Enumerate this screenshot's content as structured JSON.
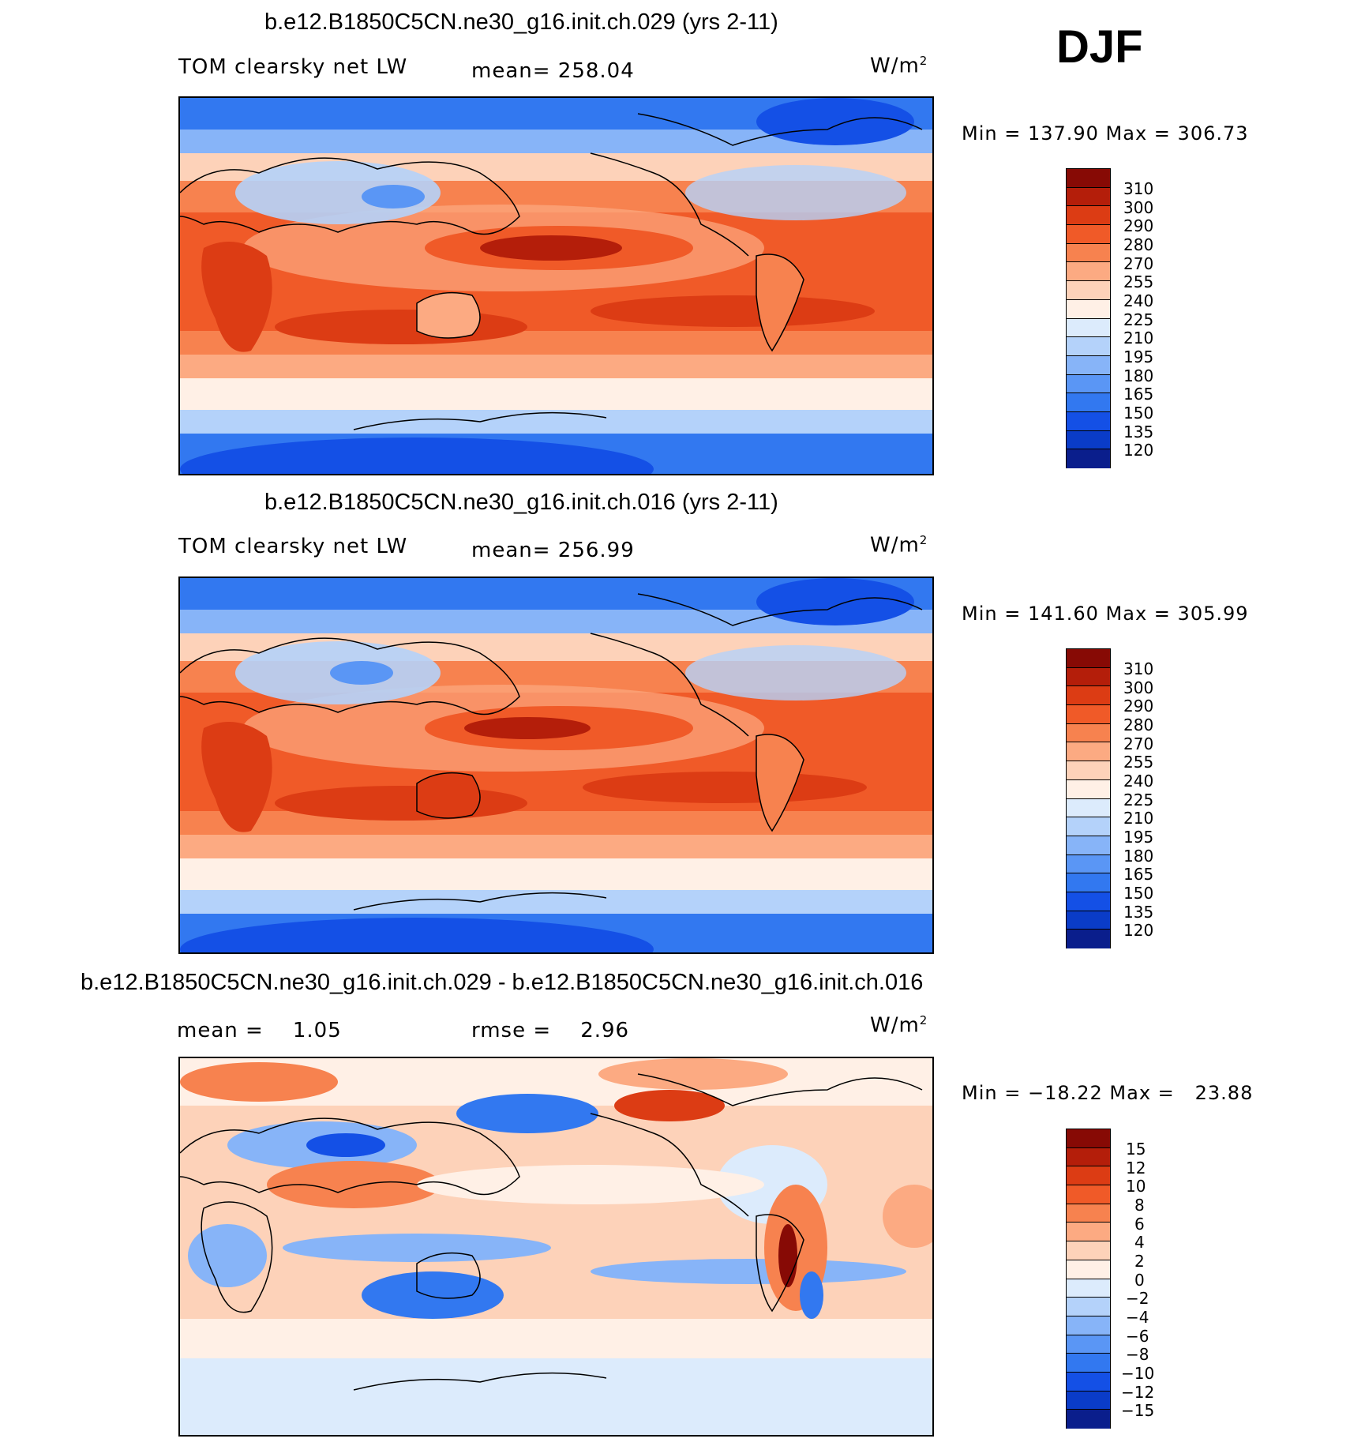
{
  "corner_label": "DJF",
  "colors": {
    "abs_scale": [
      "#0a1e8c",
      "#0a28a0",
      "#0a3cc8",
      "#1450e6",
      "#3278f0",
      "#5a96f5",
      "#87b4f8",
      "#b4d2fa",
      "#dcebfc",
      "#fff0e6",
      "#fdd2b9",
      "#fcaa82",
      "#f7824f",
      "#f05a28",
      "#dc3c14",
      "#b41e0a",
      "#870a05"
    ],
    "diff_scale": [
      "#0a1e8c",
      "#0a28a0",
      "#0a3cc8",
      "#1450e6",
      "#3278f0",
      "#5a96f5",
      "#87b4f8",
      "#b4d2fa",
      "#dcebfc",
      "#fff0e6",
      "#fdd2b9",
      "#fcaa82",
      "#f7824f",
      "#f05a28",
      "#dc3c14",
      "#b41e0a",
      "#870a05"
    ]
  },
  "panels": [
    {
      "title": "b.e12.B1850C5CN.ne30_g16.init.ch.029 (yrs 2-11)",
      "left_label": "TOM clearsky net LW",
      "center_label": "mean= 258.04",
      "units_base": "W/m",
      "units_exp": "2",
      "minmax": "Min = 137.90 Max = 306.73",
      "ticks": [
        "310",
        "300",
        "290",
        "280",
        "270",
        "255",
        "240",
        "225",
        "210",
        "195",
        "180",
        "165",
        "150",
        "135",
        "120"
      ]
    },
    {
      "title": "b.e12.B1850C5CN.ne30_g16.init.ch.016 (yrs 2-11)",
      "left_label": "TOM clearsky net LW",
      "center_label": "mean= 256.99",
      "units_base": "W/m",
      "units_exp": "2",
      "minmax": "Min = 141.60 Max = 305.99",
      "ticks": [
        "310",
        "300",
        "290",
        "280",
        "270",
        "255",
        "240",
        "225",
        "210",
        "195",
        "180",
        "165",
        "150",
        "135",
        "120"
      ]
    },
    {
      "title": "b.e12.B1850C5CN.ne30_g16.init.ch.029 - b.e12.B1850C5CN.ne30_g16.init.ch.016",
      "left_label": "mean =    1.05",
      "center_label": "rmse =    2.96",
      "units_base": "W/m",
      "units_exp": "2",
      "minmax": "Min = −18.22 Max =   23.88",
      "ticks": [
        "15",
        "12",
        "10",
        "8",
        "6",
        "4",
        "2",
        "0",
        "−2",
        "−4",
        "−6",
        "−8",
        "−10",
        "−12",
        "−15"
      ]
    }
  ]
}
